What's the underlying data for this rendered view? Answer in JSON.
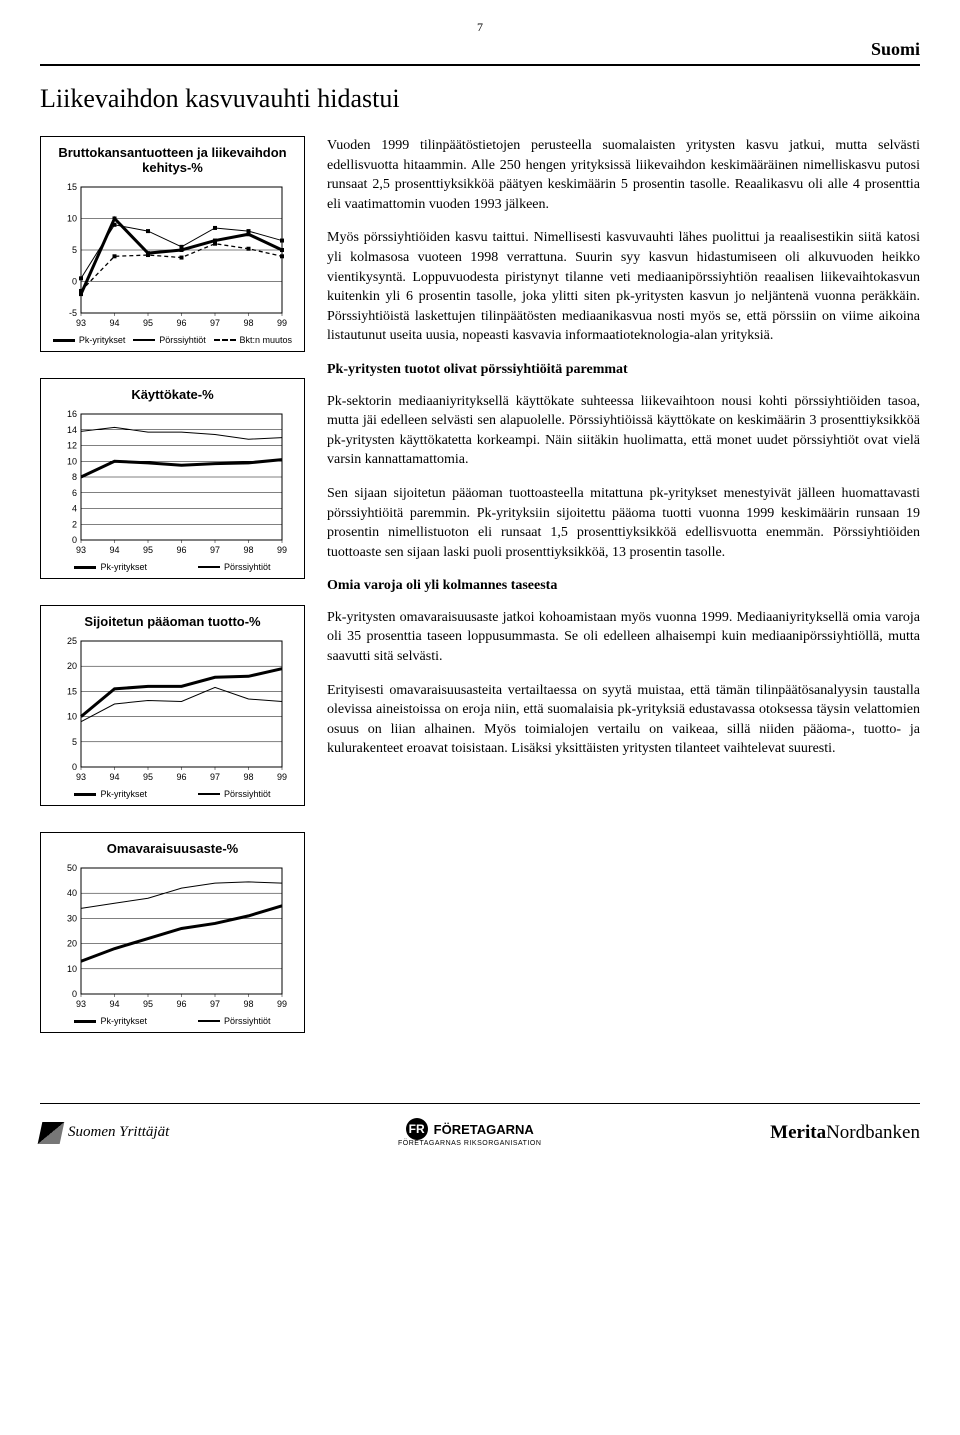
{
  "page_number": "7",
  "region": "Suomi",
  "main_title": "Liikevaihdon kasvuvauhti hidastui",
  "paragraphs": {
    "p1": "Vuoden 1999 tilinpäätöstietojen perusteella suomalaisten yritysten kasvu jatkui, mutta selvästi edellisvuotta hitaammin. Alle 250 hengen yrityksissä liikevaihdon keskimääräinen nimelliskasvu putosi runsaat 2,5 prosenttiyksikköä päätyen keskimäärin 5 prosentin tasolle. Reaalikasvu oli alle 4 prosenttia eli vaatimattomin vuoden 1993 jälkeen.",
    "p2": "Myös pörssiyhtiöiden kasvu taittui. Nimellisesti kasvuvauhti lähes puolittui ja reaalisestikin siitä katosi yli kolmasosa vuoteen 1998 verrattuna. Suurin syy kasvun hidastumiseen oli alkuvuoden heikko vientikysyntä. Loppuvuodesta piristynyt tilanne veti mediaanipörssiyhtiön reaalisen liikevaihtokasvun kuitenkin yli 6 prosentin tasolle, joka ylitti siten pk-yritysten kasvun jo neljäntenä vuonna peräkkäin. Pörssiyhtiöistä laskettujen tilinpäätösten mediaanikasvua nosti myös se, että pörssiin on viime aikoina listautunut useita uusia, nopeasti kasvavia informaatioteknologia-alan yrityksiä.",
    "h1": "Pk-yritysten tuotot olivat pörssiyhtiöitä paremmat",
    "p3": "Pk-sektorin mediaaniyrityksellä käyttökate suhteessa liikevaihtoon nousi kohti pörssiyhtiöiden tasoa, mutta jäi edelleen selvästi sen alapuolelle. Pörssiyhtiöissä käyttökate on keskimäärin 3 prosenttiyksikköä pk-yritysten käyttökatetta korkeampi. Näin siitäkin huolimatta, että monet uudet pörssiyhtiöt ovat vielä varsin kannattamattomia.",
    "p4": "Sen sijaan sijoitetun pääoman tuottoasteella mitattuna pk-yritykset menestyivät jälleen huomattavasti pörssiyhtiöitä paremmin. Pk-yrityksiin sijoitettu pääoma tuotti vuonna 1999 keskimäärin runsaan 19 prosentin nimellistuoton eli runsaat 1,5 prosenttiyksikköä edellisvuotta enemmän. Pörssiyhtiöiden tuottoaste sen sijaan laski puoli prosenttiyksikköä, 13 prosentin tasolle.",
    "h2": "Omia varoja oli yli kolmannes taseesta",
    "p5": "Pk-yritysten omavaraisuusaste jatkoi kohoamistaan myös vuonna 1999. Mediaaniyrityksellä omia varoja oli 35 prosenttia taseen loppusummasta. Se oli edelleen alhaisempi kuin mediaanipörssiyhtiöllä, mutta saavutti sitä selvästi.",
    "p6": "Erityisesti omavaraisuusasteita vertailtaessa on syytä muistaa, että tämän tilinpäätösanalyysin taustalla olevissa aineistoissa on eroja niin, että suomalaisia pk-yrityksiä edustavassa otoksessa täysin velattomien osuus on liian alhainen. Myös toimialojen vertailu on vaikeaa, sillä niiden pääoma-, tuotto- ja kulurakenteet eroavat toisistaan. Lisäksi yksittäisten yritysten tilanteet vaihtelevat suuresti."
  },
  "charts": {
    "c1": {
      "title": "Bruttokansantuotteen ja liikevaihdon kehitys-%",
      "type": "line",
      "x_labels": [
        "93",
        "94",
        "95",
        "96",
        "97",
        "98",
        "99"
      ],
      "ylim": [
        -5,
        15
      ],
      "ytick_step": 5,
      "series": [
        {
          "name": "Pk-yritykset",
          "style": "thick",
          "values": [
            -2,
            10,
            4.5,
            5,
            6.5,
            7.5,
            5
          ]
        },
        {
          "name": "Pörssiyhtiöt",
          "style": "thin",
          "values": [
            0.5,
            9,
            8,
            5.5,
            8.5,
            8,
            6.5
          ]
        },
        {
          "name": "Bkt:n muutos",
          "style": "dashed",
          "values": [
            -1.5,
            4,
            4.2,
            3.8,
            6,
            5.2,
            4
          ]
        }
      ],
      "legend": [
        {
          "label": "Pk-yritykset",
          "style": "thick"
        },
        {
          "label": "Pörssiyhtiöt",
          "style": "thin"
        },
        {
          "label": "Bkt:n muutos",
          "style": "dashed"
        }
      ],
      "markers": true,
      "colors": {
        "stroke": "#000000",
        "background": "#ffffff"
      }
    },
    "c2": {
      "title": "Käyttökate-%",
      "type": "line",
      "x_labels": [
        "93",
        "94",
        "95",
        "96",
        "97",
        "98",
        "99"
      ],
      "ylim": [
        0,
        16
      ],
      "ytick_step": 2,
      "series": [
        {
          "name": "Pk-yritykset",
          "style": "thick",
          "values": [
            8,
            10,
            9.8,
            9.5,
            9.7,
            9.8,
            10.2
          ]
        },
        {
          "name": "Pörssiyhtiöt",
          "style": "thin",
          "values": [
            13.8,
            14.3,
            13.7,
            13.7,
            13.4,
            12.8,
            13
          ]
        }
      ],
      "legend": [
        {
          "label": "Pk-yritykset",
          "style": "thick"
        },
        {
          "label": "Pörssiyhtiöt",
          "style": "thin"
        }
      ],
      "markers": false,
      "colors": {
        "stroke": "#000000",
        "background": "#ffffff"
      }
    },
    "c3": {
      "title": "Sijoitetun pääoman tuotto-%",
      "type": "line",
      "x_labels": [
        "93",
        "94",
        "95",
        "96",
        "97",
        "98",
        "99"
      ],
      "ylim": [
        0,
        25
      ],
      "ytick_step": 5,
      "series": [
        {
          "name": "Pk-yritykset",
          "style": "thick",
          "values": [
            10,
            15.5,
            16,
            16,
            17.8,
            18,
            19.5
          ]
        },
        {
          "name": "Pörssiyhtiöt",
          "style": "thin",
          "values": [
            9,
            12.5,
            13.2,
            13,
            15.8,
            13.5,
            13
          ]
        }
      ],
      "legend": [
        {
          "label": "Pk-yritykset",
          "style": "thick"
        },
        {
          "label": "Pörssiyhtiöt",
          "style": "thin"
        }
      ],
      "markers": false,
      "colors": {
        "stroke": "#000000",
        "background": "#ffffff"
      }
    },
    "c4": {
      "title": "Omavaraisuusaste-%",
      "type": "line",
      "x_labels": [
        "93",
        "94",
        "95",
        "96",
        "97",
        "98",
        "99"
      ],
      "ylim": [
        0,
        50
      ],
      "ytick_step": 10,
      "series": [
        {
          "name": "Pk-yritykset",
          "style": "thick",
          "values": [
            13,
            18,
            22,
            26,
            28,
            31,
            35
          ]
        },
        {
          "name": "Pörssiyhtiöt",
          "style": "thin",
          "values": [
            34,
            36,
            38,
            42,
            44,
            44.5,
            44
          ]
        }
      ],
      "legend": [
        {
          "label": "Pk-yritykset",
          "style": "thick"
        },
        {
          "label": "Pörssiyhtiöt",
          "style": "thin"
        }
      ],
      "markers": false,
      "colors": {
        "stroke": "#000000",
        "background": "#ffffff"
      }
    }
  },
  "footer": {
    "left": "Suomen Yrittäjät",
    "center": "FÖRETAGARNA",
    "center_sub": "FÖRETAGARNAS RIKSORGANISATION",
    "center_badge": "FR",
    "right": "MeritaNordbanken"
  }
}
